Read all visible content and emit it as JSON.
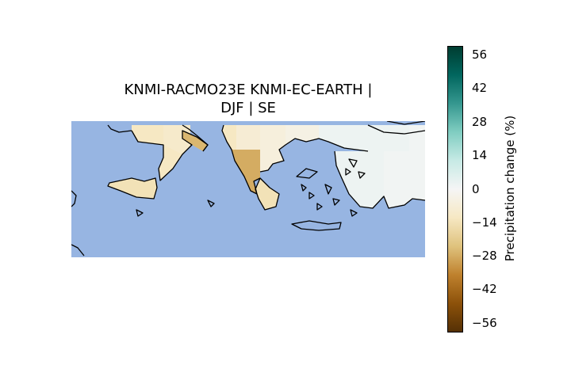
{
  "title": {
    "line1": "KNMI-RACMO23E KNMI-EC-EARTH |",
    "line2": "DJF | SE"
  },
  "colorbar": {
    "label": "Precipitation change (%)",
    "min": -60,
    "max": 60,
    "ticks": [
      "56",
      "42",
      "28",
      "14",
      "0",
      "−14",
      "−28",
      "−42",
      "−56"
    ],
    "tick_values": [
      56,
      42,
      28,
      14,
      0,
      -14,
      -28,
      -42,
      -56
    ],
    "colormap": "BrBG"
  },
  "colors": {
    "sea": "#97b5e2",
    "coast": "#000000"
  },
  "chart_data": {
    "type": "heatmap",
    "title": "KNMI-RACMO23E KNMI-EC-EARTH | DJF | SE",
    "units": "%",
    "value_range": [
      -60,
      60
    ],
    "cells": [
      {
        "region": "southern-italy-north",
        "value": -12
      },
      {
        "region": "southern-italy-mid",
        "value": -10
      },
      {
        "region": "gulf-taranto-coast",
        "value": -26
      },
      {
        "region": "calabria",
        "value": -12
      },
      {
        "region": "sicily",
        "value": -14
      },
      {
        "region": "albania-north",
        "value": -12
      },
      {
        "region": "albania-epirus",
        "value": -28
      },
      {
        "region": "western-greece",
        "value": -8
      },
      {
        "region": "peloponnese-west",
        "value": -14
      },
      {
        "region": "central-greece",
        "value": -6
      },
      {
        "region": "northern-greece",
        "value": -4
      },
      {
        "region": "thrace-east",
        "value": 2
      },
      {
        "region": "aegean-west-turkey",
        "value": 2
      },
      {
        "region": "anatolia-north",
        "value": 2
      }
    ]
  }
}
